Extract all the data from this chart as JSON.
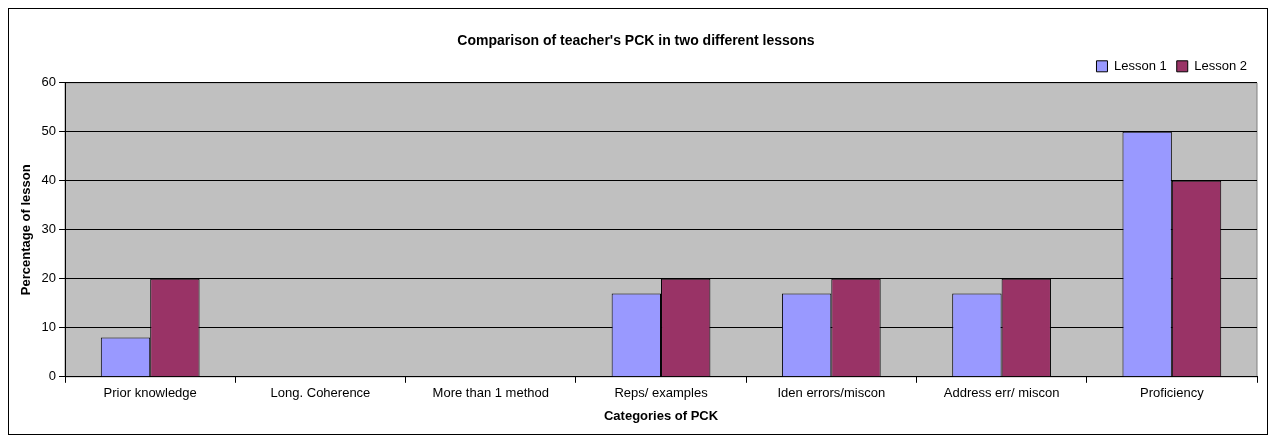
{
  "chart_data": {
    "type": "bar",
    "title": "Comparison of teacher's PCK in two different lessons",
    "xlabel": "Categories of PCK",
    "ylabel": "Percentage of lesson",
    "categories": [
      "Prior knowledge",
      "Long. Coherence",
      "More than 1 method",
      "Reps/ examples",
      "Iden errors/miscon",
      "Address err/ miscon",
      "Proficiency"
    ],
    "series": [
      {
        "name": "Lesson 1",
        "color": "#9999ff",
        "values": [
          8,
          0,
          0,
          17,
          17,
          17,
          50
        ]
      },
      {
        "name": "Lesson 2",
        "color": "#993366",
        "values": [
          20,
          0,
          0,
          20,
          20,
          20,
          40
        ]
      }
    ],
    "ylim": [
      0,
      60
    ],
    "yticks": [
      0,
      10,
      20,
      30,
      40,
      50,
      60
    ],
    "grid": "y",
    "legend": "top right"
  }
}
